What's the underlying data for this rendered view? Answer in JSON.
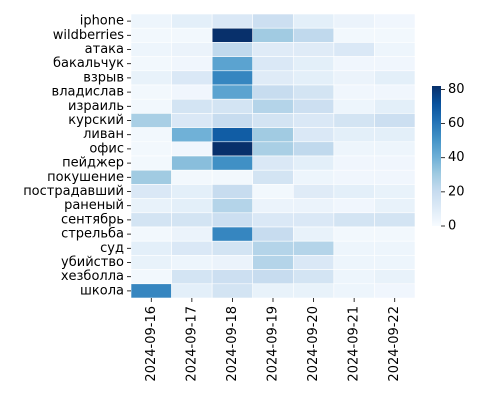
{
  "chart_data": {
    "type": "heatmap",
    "title": "",
    "xlabel": "",
    "ylabel": "",
    "x_categories": [
      "2024-09-16",
      "2024-09-17",
      "2024-09-18",
      "2024-09-19",
      "2024-09-20",
      "2024-09-21",
      "2024-09-22"
    ],
    "y_categories": [
      "iphone",
      "wildberries",
      "атака",
      "бакальчук",
      "взрыв",
      "владислав",
      "израиль",
      "курский",
      "ливан",
      "офис",
      "пейджер",
      "покушение",
      "пострадавший",
      "раненый",
      "сентябрь",
      "стрельба",
      "суд",
      "убийство",
      "хезболла",
      "школа"
    ],
    "values": [
      [
        4,
        8,
        12,
        18,
        8,
        5,
        3
      ],
      [
        2,
        2,
        82,
        30,
        22,
        2,
        2
      ],
      [
        4,
        5,
        22,
        10,
        10,
        12,
        4
      ],
      [
        2,
        3,
        45,
        12,
        8,
        3,
        3
      ],
      [
        6,
        12,
        55,
        10,
        8,
        5,
        8
      ],
      [
        2,
        3,
        45,
        20,
        15,
        3,
        3
      ],
      [
        2,
        15,
        15,
        25,
        18,
        4,
        8
      ],
      [
        28,
        12,
        20,
        15,
        12,
        15,
        18
      ],
      [
        2,
        40,
        68,
        30,
        12,
        8,
        8
      ],
      [
        2,
        3,
        90,
        28,
        22,
        4,
        4
      ],
      [
        2,
        35,
        52,
        12,
        8,
        3,
        3
      ],
      [
        30,
        2,
        2,
        15,
        4,
        3,
        3
      ],
      [
        12,
        8,
        20,
        2,
        10,
        8,
        6
      ],
      [
        6,
        8,
        25,
        5,
        5,
        3,
        6
      ],
      [
        15,
        15,
        18,
        12,
        12,
        15,
        15
      ],
      [
        2,
        5,
        55,
        20,
        6,
        2,
        2
      ],
      [
        8,
        12,
        15,
        25,
        25,
        4,
        4
      ],
      [
        6,
        4,
        5,
        25,
        12,
        4,
        4
      ],
      [
        2,
        15,
        18,
        20,
        15,
        4,
        6
      ],
      [
        55,
        8,
        15,
        6,
        6,
        4,
        3
      ]
    ],
    "colorbar": {
      "range": [
        0,
        82
      ],
      "ticks": [
        0,
        20,
        40,
        60,
        80
      ]
    },
    "colormap": "Blues",
    "grid": false,
    "legend": "colorbar-right"
  }
}
